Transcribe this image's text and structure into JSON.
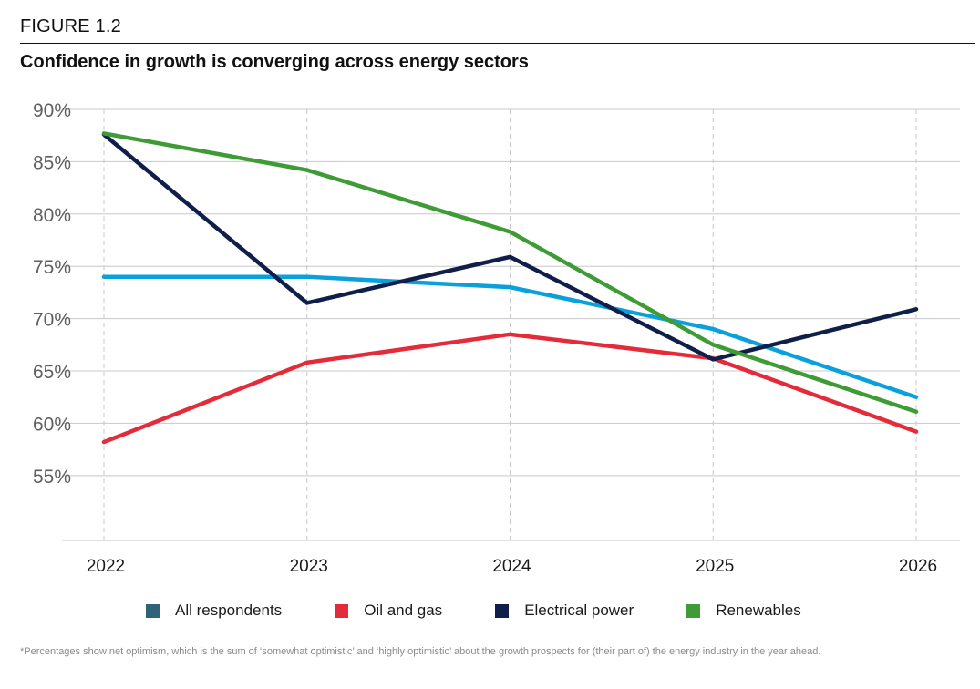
{
  "figure_label": "FIGURE 1.2",
  "title": "Confidence in growth is converging across energy sectors",
  "footnote": "*Percentages show net optimism, which is the sum of ‘somewhat optimistic’ and ‘highly optimistic’ about the growth prospects for (their part of) the energy industry in the year ahead.",
  "chart_data": {
    "type": "line",
    "title": "Confidence in growth is converging across energy sectors",
    "xlabel": "",
    "ylabel": "",
    "x": [
      "2022",
      "2023",
      "2024",
      "2025",
      "2026"
    ],
    "ylim": [
      48.8,
      90
    ],
    "yticks": [
      55,
      60,
      65,
      70,
      75,
      80,
      85,
      90
    ],
    "ytick_labels": [
      "55%",
      "60%",
      "65%",
      "70%",
      "75%",
      "80%",
      "85%",
      "90%"
    ],
    "grid": "horizontal solid, vertical dashed",
    "legend_position": "bottom",
    "series": [
      {
        "name": "All respondents",
        "legend_color": "#2e6478",
        "line_color": "#0aa0dc",
        "values": [
          74,
          74,
          73,
          69,
          62.5
        ]
      },
      {
        "name": "Oil and gas",
        "legend_color": "#e32b3a",
        "line_color": "#e32b3a",
        "values": [
          58.2,
          65.8,
          68.5,
          66.2,
          59.2
        ]
      },
      {
        "name": "Electrical power",
        "legend_color": "#101e4a",
        "line_color": "#101e4a",
        "values": [
          87.6,
          71.5,
          75.9,
          66.1,
          70.9
        ]
      },
      {
        "name": "Renewables",
        "legend_color": "#3f9b35",
        "line_color": "#3f9b35",
        "values": [
          87.7,
          84.2,
          78.3,
          67.5,
          61.1
        ]
      }
    ]
  }
}
